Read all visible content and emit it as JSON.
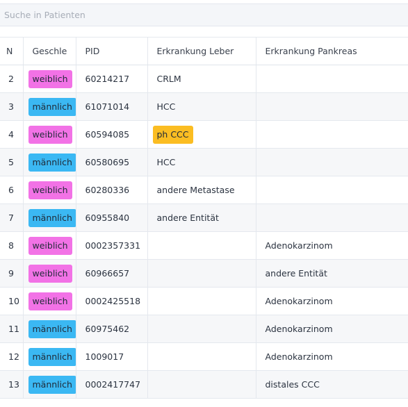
{
  "search": {
    "placeholder": "Suche in Patienten",
    "value": ""
  },
  "table": {
    "headers": [
      "N",
      "Geschle",
      "PID",
      "Erkrankung Leber",
      "Erkrankung Pankreas"
    ],
    "rows": [
      {
        "nr": "2",
        "gender": "weiblich",
        "pid": "60214217",
        "leber": "CRLM",
        "pankreas": ""
      },
      {
        "nr": "3",
        "gender": "männlich",
        "pid": "61071014",
        "leber": "HCC",
        "pankreas": ""
      },
      {
        "nr": "4",
        "gender": "weiblich",
        "pid": "60594085",
        "leber": "ph CCC",
        "pankreas": "",
        "leber_tag": true
      },
      {
        "nr": "5",
        "gender": "männlich",
        "pid": "60580695",
        "leber": "HCC",
        "pankreas": ""
      },
      {
        "nr": "6",
        "gender": "weiblich",
        "pid": "60280336",
        "leber": "andere Metastase",
        "pankreas": ""
      },
      {
        "nr": "7",
        "gender": "männlich",
        "pid": "60955840",
        "leber": "andere Entität",
        "pankreas": ""
      },
      {
        "nr": "8",
        "gender": "weiblich",
        "pid": "0002357331",
        "leber": "",
        "pankreas": "Adenokarzinom"
      },
      {
        "nr": "9",
        "gender": "weiblich",
        "pid": "60966657",
        "leber": "",
        "pankreas": "andere Entität"
      },
      {
        "nr": "10",
        "gender": "weiblich",
        "pid": "0002425518",
        "leber": "",
        "pankreas": "Adenokarzinom"
      },
      {
        "nr": "11",
        "gender": "männlich",
        "pid": "60975462",
        "leber": "",
        "pankreas": "Adenokarzinom"
      },
      {
        "nr": "12",
        "gender": "männlich",
        "pid": "1009017",
        "leber": "",
        "pankreas": "Adenokarzinom"
      },
      {
        "nr": "13",
        "gender": "männlich",
        "pid": "0002417747",
        "leber": "",
        "pankreas": "distales CCC"
      }
    ]
  },
  "colors": {
    "weiblich": "#f272e6",
    "männlich": "#3bb8f3",
    "tag": "#fbbd22"
  }
}
